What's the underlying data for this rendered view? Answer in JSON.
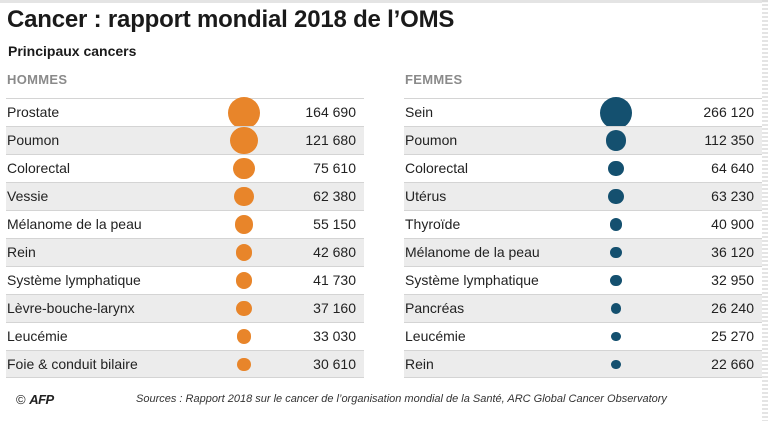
{
  "title": "Cancer : rapport mondial 2018 de l’OMS",
  "subtitle": "Principaux  cancers",
  "colors": {
    "men": "#e8852a",
    "women": "#14506f"
  },
  "chart_data": [
    {
      "type": "table",
      "title": "HOMMES",
      "categories": [
        "Prostate",
        "Poumon",
        "Colorectal",
        "Vessie",
        "Mélanome de la peau",
        "Rein",
        "Système lymphatique",
        "Lèvre-bouche-larynx",
        "Leucémie",
        "Foie & conduit bilaire"
      ],
      "values": [
        164690,
        121680,
        75610,
        62380,
        55150,
        42680,
        41730,
        37160,
        33030,
        30610
      ],
      "value_labels": [
        "164 690",
        "121 680",
        "75 610",
        "62 380",
        "55 150",
        "42 680",
        "41 730",
        "37 160",
        "33 030",
        "30 610"
      ]
    },
    {
      "type": "table",
      "title": "FEMMES",
      "categories": [
        "Sein",
        "Poumon",
        "Colorectal",
        "Utérus",
        "Thyroïde",
        "Mélanome de la peau",
        "Système lymphatique",
        "Pancréas",
        "Leucémie",
        "Rein"
      ],
      "values": [
        266120,
        112350,
        64640,
        63230,
        40900,
        36120,
        32950,
        26240,
        25270,
        22660
      ],
      "value_labels": [
        "266 120",
        "112 350",
        "64 640",
        "63 230",
        "40 900",
        "36 120",
        "32 950",
        "26 240",
        "25 270",
        "22 660"
      ]
    }
  ],
  "footer": {
    "copyright": "©",
    "logo": "AFP",
    "sources": "Sources : Rapport 2018 sur le cancer de l’organisation mondial de la Santé, ARC Global Cancer Observatory"
  }
}
